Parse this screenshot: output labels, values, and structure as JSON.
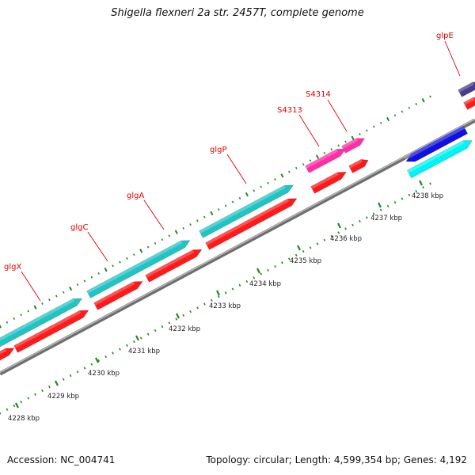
{
  "title": "Shigella flexneri 2a str. 2457T, complete genome",
  "footer": {
    "accession": "Accession: NC_004741",
    "topology": "Topology: circular; Length: 4,599,354 bp; Genes: 4,192"
  },
  "colors": {
    "background": "#ffffff",
    "backbone": "#8c8c8c",
    "gene_forward": "#20c4c4",
    "cds": "#ff1a1a",
    "misc_rna": "#ff2fa8",
    "blue_feature": "#1010e0",
    "cyan_feature": "#00f4f4",
    "purple_feature": "#4a3c8c",
    "tick_green": "#1f8a1f",
    "label_red": "#e00000"
  },
  "ruler": {
    "ticks": [
      {
        "label": "4228 kbp",
        "kbp": 4228
      },
      {
        "label": "4229 kbp",
        "kbp": 4229
      },
      {
        "label": "4230 kbp",
        "kbp": 4230
      },
      {
        "label": "4231 kbp",
        "kbp": 4231
      },
      {
        "label": "4232 kbp",
        "kbp": 4232
      },
      {
        "label": "4233 kbp",
        "kbp": 4233
      },
      {
        "label": "4234 kbp",
        "kbp": 4234
      },
      {
        "label": "4235 kbp",
        "kbp": 4235
      },
      {
        "label": "4236 kbp",
        "kbp": 4236
      },
      {
        "label": "4237 kbp",
        "kbp": 4237
      },
      {
        "label": "4238 kbp",
        "kbp": 4238
      }
    ]
  },
  "labels": [
    {
      "id": "glgX",
      "text": "glgX"
    },
    {
      "id": "glgC",
      "text": "glgC"
    },
    {
      "id": "glgA",
      "text": "glgA"
    },
    {
      "id": "glgP",
      "text": "glgP"
    },
    {
      "id": "S4313",
      "text": "S4313"
    },
    {
      "id": "S4314",
      "text": "S4314"
    },
    {
      "id": "glpE",
      "text": "glpE"
    }
  ]
}
